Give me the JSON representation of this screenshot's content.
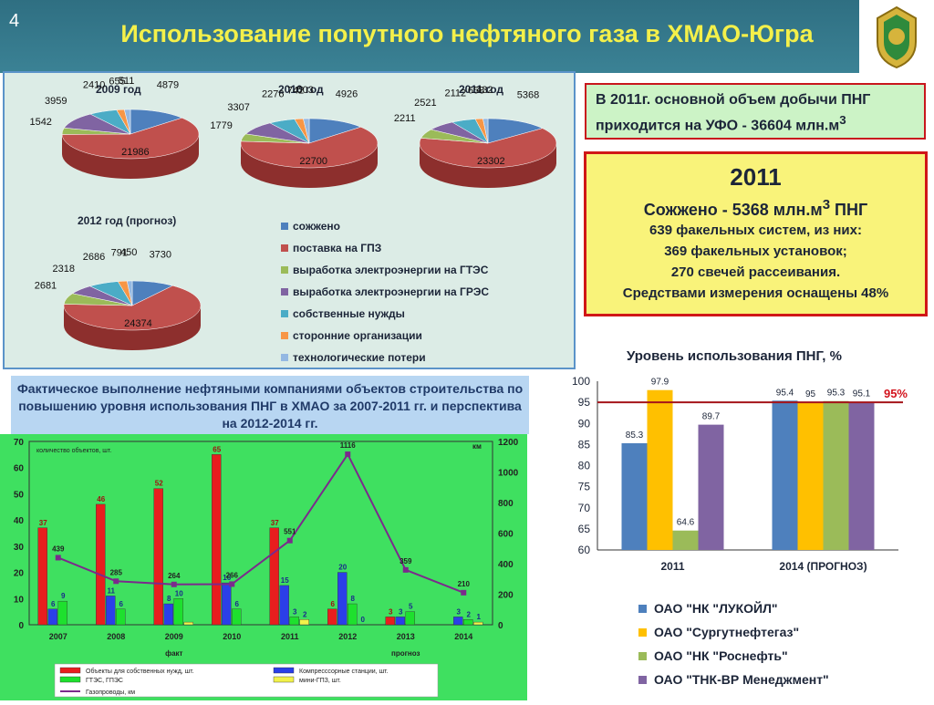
{
  "page_number": "4",
  "title": "Использование попутного нефтяного газа в ХМАО-Югра",
  "colors": {
    "burned": "#4e80bd",
    "gpz": "#c0504d",
    "gtes": "#9bbb59",
    "gres": "#8064a2",
    "own": "#4bacc6",
    "third": "#f79646",
    "losses": "#94b8e2"
  },
  "chart_data": [
    {
      "type": "pie",
      "legend": [
        "сожжено",
        "поставка на ГПЗ",
        "выработка электроэнергии на ГТЭС",
        "выработка электроэнергии на ГРЭС",
        "собственные нужды",
        "сторонние организации",
        "технологические потери"
      ],
      "pies": [
        {
          "title": "2009 год",
          "values": [
            4879,
            21986,
            1542,
            3959,
            2410,
            655,
            511
          ]
        },
        {
          "title": "2010 год",
          "values": [
            4926,
            22700,
            1779,
            3307,
            2276,
            742,
            503
          ]
        },
        {
          "title": "2011 год",
          "values": [
            5368,
            23302,
            2211,
            2521,
            2112,
            658,
            432
          ]
        },
        {
          "title": "2012 год (прогноз)",
          "values": [
            3730,
            24374,
            2681,
            2318,
            2686,
            791,
            450
          ]
        }
      ]
    },
    {
      "type": "bar",
      "title": "Уровень использования ПНГ, %",
      "categories": [
        "2011",
        "2014 (ПРОГНОЗ)"
      ],
      "ylim": [
        60,
        100
      ],
      "yticks": [
        60,
        65,
        70,
        75,
        80,
        85,
        90,
        95,
        100
      ],
      "series": [
        {
          "name": "ОАО \"НК \"ЛУКОЙЛ\"",
          "values": [
            85.3,
            95.4
          ],
          "color": "#4e80bd"
        },
        {
          "name": "ОАО \"Сургутнефтегаз\"",
          "values": [
            97.9,
            95
          ],
          "color": "#ffc000"
        },
        {
          "name": "ОАО \"НК \"Роснефть\"",
          "values": [
            64.6,
            95.3
          ],
          "color": "#9bbb59"
        },
        {
          "name": "ОАО \"ТНК-ВР Менеджмент\"",
          "values": [
            89.7,
            95.1
          ],
          "color": "#8064a2"
        }
      ],
      "reference_line": {
        "value": 95,
        "label": "95%"
      }
    },
    {
      "type": "bar",
      "title": "Фактическое выполнение нефтяными компаниями объектов строительства по повышению уровня использования ПНГ в ХМАО за 2007-2011 гг. и перспектива на 2012-2014 гг.",
      "categories": [
        "2007",
        "2008",
        "2009",
        "2010",
        "2011",
        "2012",
        "2013",
        "2014"
      ],
      "ylabel": "количество объектов, шт.",
      "y2label": "км",
      "ylim": [
        0,
        70
      ],
      "yticks": [
        0,
        10,
        20,
        30,
        40,
        50,
        60,
        70
      ],
      "y2lim": [
        0,
        1200
      ],
      "y2ticks": [
        0,
        200,
        400,
        600,
        800,
        1000,
        1200
      ],
      "group_labels": [
        "факт",
        "прогноз"
      ],
      "series": [
        {
          "name": "Объекты для собственных нужд, шт.",
          "values": [
            37,
            46,
            52,
            65,
            37,
            6,
            3,
            0
          ],
          "color": "#e81e1e"
        },
        {
          "name": "Компресссорные станции, шт.",
          "values": [
            6,
            11,
            8,
            16,
            15,
            20,
            3,
            3
          ],
          "color": "#2b3fe8"
        },
        {
          "name": "ГТЭС, ГПЭС",
          "values": [
            9,
            6,
            10,
            6,
            3,
            8,
            5,
            2
          ],
          "color": "#1ee02e"
        },
        {
          "name": "мини-ГПЗ, шт.",
          "values": [
            0,
            0,
            1,
            0,
            2,
            0,
            0,
            1
          ],
          "color": "#f2f24a"
        }
      ],
      "bar_labels": [
        [
          "37",
          "46",
          "52",
          "65",
          "37",
          "6",
          "3",
          ""
        ],
        [
          "6",
          "11",
          "8",
          "16",
          "15",
          "20",
          "3",
          "3"
        ],
        [
          "9",
          "6",
          "10",
          "6",
          "3",
          "8",
          "5",
          "2"
        ],
        [
          "",
          "",
          "",
          "",
          "2",
          "0",
          "",
          "1"
        ]
      ],
      "line": {
        "name": "Газопроводы, км",
        "values": [
          439,
          285,
          264,
          266,
          551,
          1116,
          359,
          210
        ],
        "color": "#7b2a8c"
      }
    }
  ],
  "info_box": {
    "line1": "В 2011г. основной объем добычи ПНГ",
    "line2": "приходится на УФО - 36604 млн.м",
    "sup": "3"
  },
  "stats_box": {
    "year": "2011",
    "burned_pre": "Сожжено - 5368 млн.м",
    "burned_sup": "3",
    "burned_post": " ПНГ",
    "line1": "639 факельных систем, из них:",
    "line2": "369 факельных установок;",
    "line3": "270 свечей рассеивания.",
    "line4": "Средствами измерения оснащены 48%"
  }
}
